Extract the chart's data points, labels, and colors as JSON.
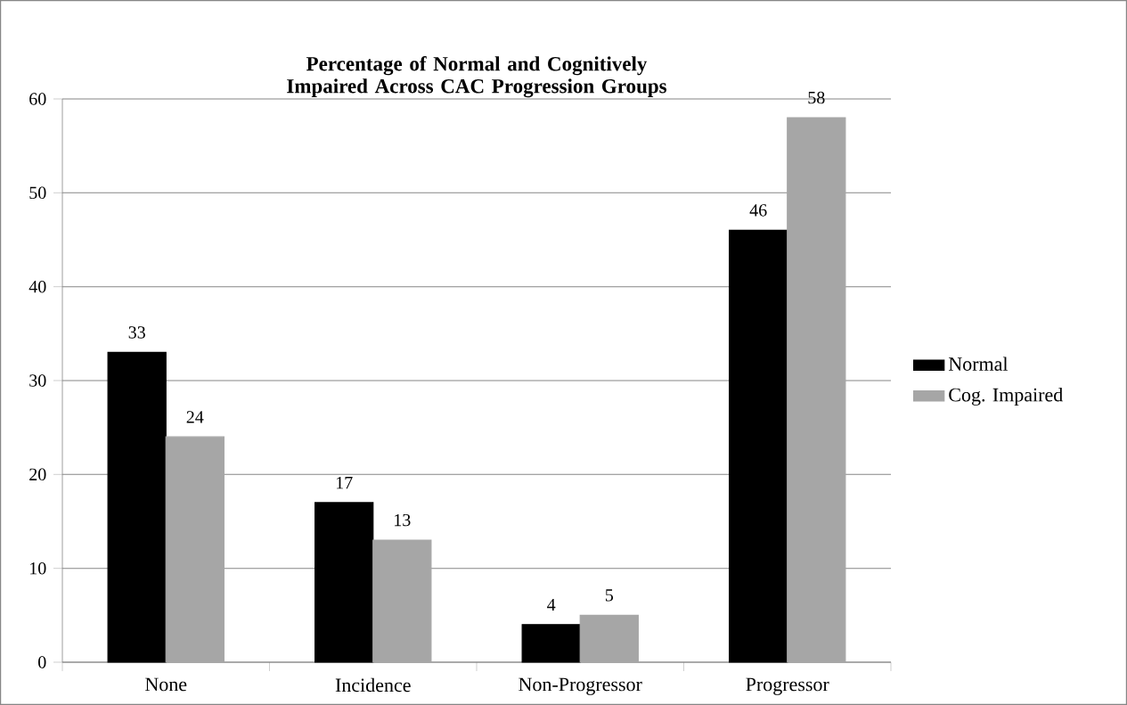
{
  "chart_data": {
    "type": "bar",
    "title": "Percentage of Normal and Cognitively Impaired Across CAC Progression Groups",
    "categories": [
      "None",
      "Incidence",
      "Non-Progressor",
      "Progressor"
    ],
    "series": [
      {
        "name": "Normal",
        "color": "#000000",
        "values": [
          33,
          17,
          4,
          46
        ]
      },
      {
        "name": "Cog. Impaired",
        "color": "#a6a6a6",
        "values": [
          24,
          13,
          5,
          58
        ]
      }
    ],
    "ylim": [
      0,
      60
    ],
    "yticks": [
      0,
      10,
      20,
      30,
      40,
      50,
      60
    ],
    "grid": "y",
    "legend": "right",
    "data_labels": true
  }
}
